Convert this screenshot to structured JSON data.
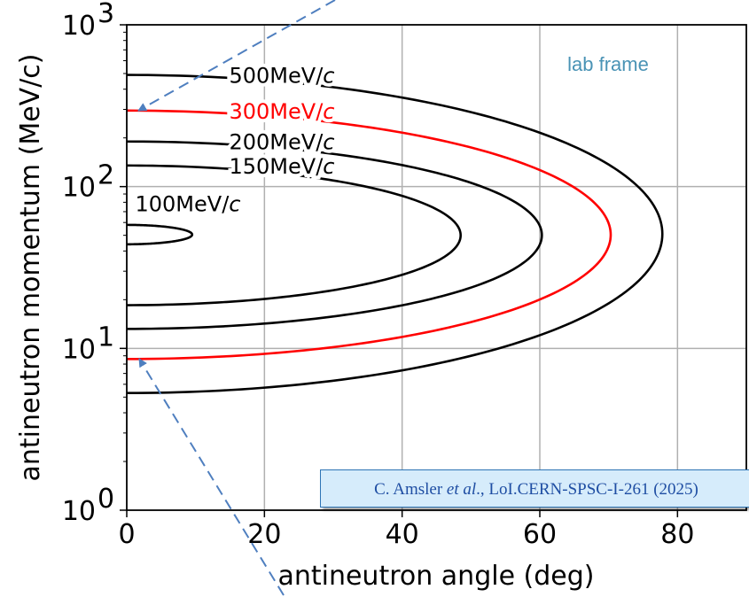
{
  "chart_data": {
    "type": "line",
    "xlabel": "antineutron angle (deg)",
    "ylabel": "antineutron momentum (MeV/c)",
    "xlim": [
      0,
      90
    ],
    "ylim": [
      1,
      1000
    ],
    "yscale": "log",
    "grid": true,
    "x_ticks": [
      {
        "value": 0,
        "label": "0"
      },
      {
        "value": 20,
        "label": "20"
      },
      {
        "value": 40,
        "label": "40"
      },
      {
        "value": 60,
        "label": "60"
      },
      {
        "value": 80,
        "label": "80"
      }
    ],
    "y_ticks": [
      {
        "value": 1,
        "base": "10",
        "exp": "0"
      },
      {
        "value": 10,
        "base": "10",
        "exp": "1"
      },
      {
        "value": 100,
        "base": "10",
        "exp": "2"
      },
      {
        "value": 1000,
        "base": "10",
        "exp": "3"
      }
    ],
    "series": [
      {
        "label": "100MeV/",
        "unit_italic": "c",
        "color": "#000000",
        "p_high": 58,
        "p_low": 44,
        "max_angle": 9.5
      },
      {
        "label": "150MeV/",
        "unit_italic": "c",
        "color": "#000000",
        "p_high": 135,
        "p_low": 18.5,
        "max_angle": 48.5
      },
      {
        "label": "200MeV/",
        "unit_italic": "c",
        "color": "#000000",
        "p_high": 190,
        "p_low": 13.2,
        "max_angle": 60.3
      },
      {
        "label": "300MeV/",
        "unit_italic": "c",
        "color": "#ff0000",
        "p_high": 295,
        "p_low": 8.6,
        "max_angle": 70.3
      },
      {
        "label": "500MeV/",
        "unit_italic": "c",
        "color": "#000000",
        "p_high": 490,
        "p_low": 5.3,
        "max_angle": 77.8
      }
    ],
    "annotations": {
      "frame_label": "lab frame",
      "frame_label_color": "#4a93b5",
      "citation_prefix": "C. Amsler ",
      "citation_etal": "et al",
      "citation_suffix": "., LoI.CERN-SPSC-I-261 (2025)",
      "arrow_color": "#4f7fbf"
    }
  }
}
